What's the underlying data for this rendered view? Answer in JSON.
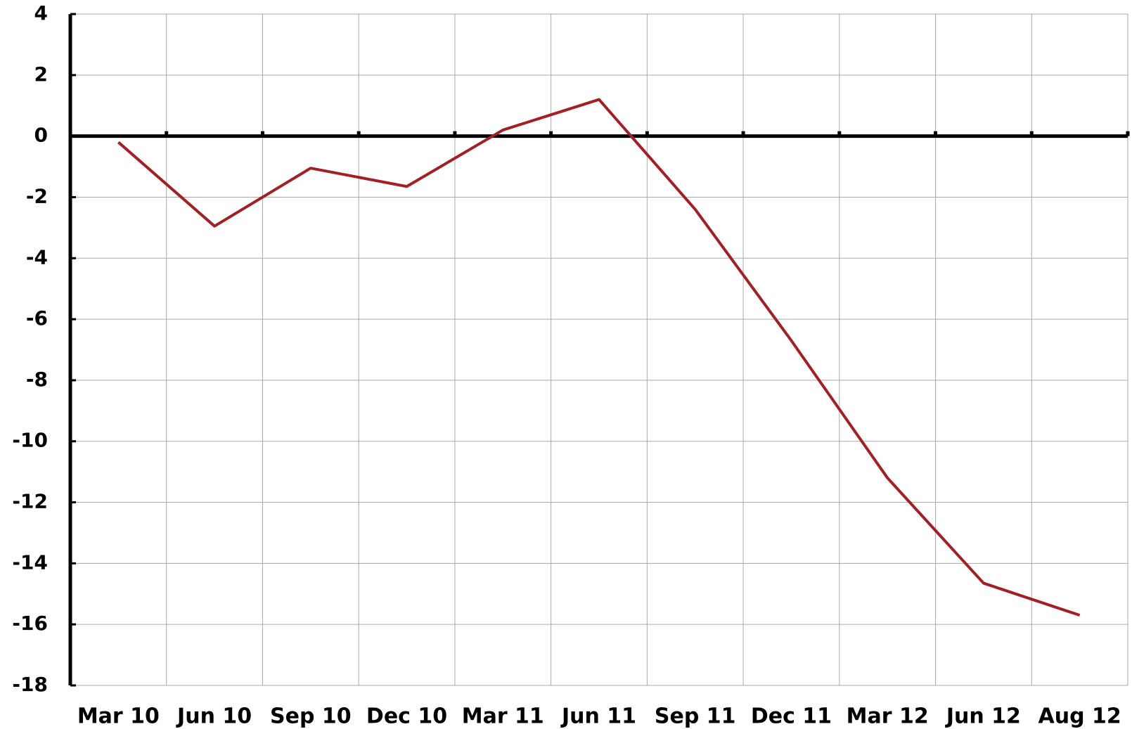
{
  "chart_data": {
    "type": "line",
    "categories": [
      "Mar 10",
      "Jun 10",
      "Sep 10",
      "Dec 10",
      "Mar 11",
      "Jun 11",
      "Sep 11",
      "Dec 11",
      "Mar 12",
      "Jun 12",
      "Aug 12"
    ],
    "series": [
      {
        "color": "#a31f24",
        "values": [
          -0.2,
          -2.95,
          -1.05,
          -1.65,
          0.2,
          1.2,
          -2.4,
          -6.7,
          -11.2,
          -14.65,
          -15.7
        ]
      }
    ],
    "ylim": [
      -18,
      4
    ],
    "yticks": [
      4,
      2,
      0,
      -2,
      -4,
      -6,
      -8,
      -10,
      -12,
      -14,
      -16,
      -18
    ],
    "grid": true
  }
}
